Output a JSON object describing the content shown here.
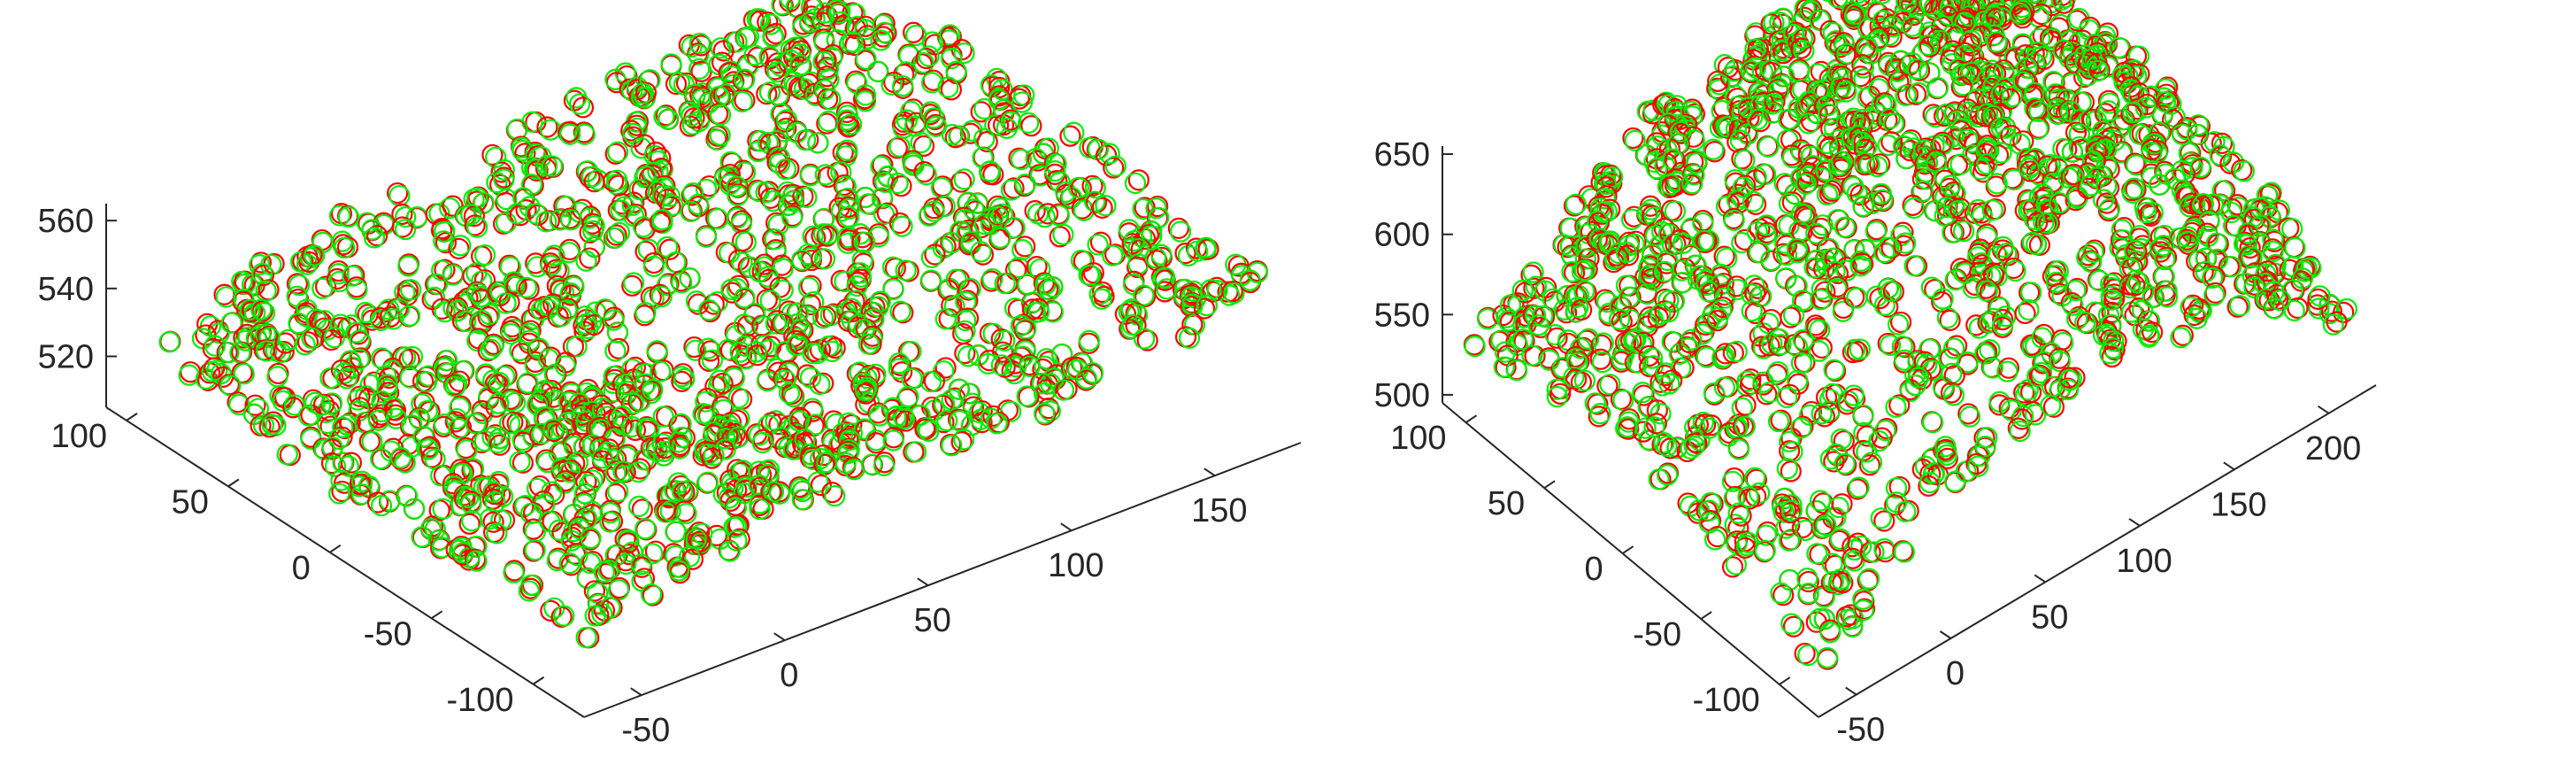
{
  "chart_data": [
    {
      "type": "scatter",
      "title": "",
      "xlabel": "",
      "ylabel": "",
      "zlabel": "",
      "xlim": [
        -70,
        180
      ],
      "ylim": [
        -125,
        110
      ],
      "zlim": [
        505,
        565
      ],
      "grid": false,
      "marker": "open-circle",
      "x_ticks": [
        "-50",
        "0",
        "50",
        "100",
        "150"
      ],
      "y_ticks": [
        "-100",
        "-50",
        "0",
        "50",
        "100"
      ],
      "z_ticks": [
        "520",
        "540",
        "560"
      ],
      "series": [
        {
          "color": "#ff0000",
          "approx_points": 1400,
          "surface": "gently sloped plane, z ≈ 500–570"
        },
        {
          "color": "#00ee00",
          "approx_points": 1400,
          "surface": "nearly coincident with the red set"
        }
      ]
    },
    {
      "type": "scatter",
      "title": "",
      "xlabel": "",
      "ylabel": "",
      "zlabel": "",
      "xlim": [
        -70,
        225
      ],
      "ylim": [
        -125,
        115
      ],
      "zlim": [
        495,
        655
      ],
      "grid": false,
      "marker": "open-circle",
      "x_ticks": [
        "-50",
        "0",
        "50",
        "100",
        "150",
        "200"
      ],
      "y_ticks": [
        "-100",
        "-50",
        "0",
        "50",
        "100"
      ],
      "z_ticks": [
        "500",
        "550",
        "600",
        "650"
      ],
      "series": [
        {
          "color": "#ff0000",
          "approx_points": 1400,
          "surface": "curved dome, peak z ≈ 640"
        },
        {
          "color": "#00ee00",
          "approx_points": 1400,
          "surface": "curved dome, slightly offset from red"
        }
      ]
    }
  ]
}
